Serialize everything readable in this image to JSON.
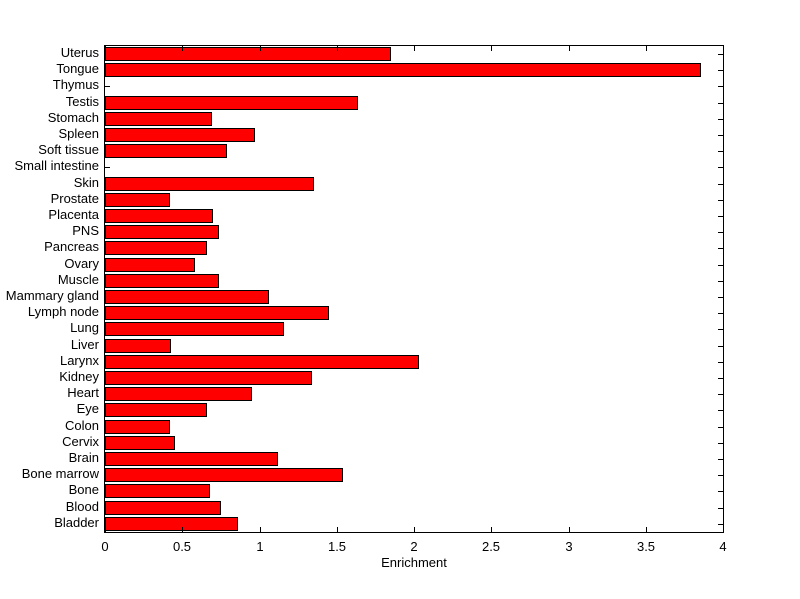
{
  "chart_data": {
    "type": "bar",
    "orientation": "horizontal",
    "title": "",
    "xlabel": "Enrichment",
    "ylabel": "",
    "xlim": [
      0,
      4
    ],
    "xticks": [
      0,
      0.5,
      1,
      1.5,
      2,
      2.5,
      3,
      3.5,
      4
    ],
    "xtick_labels": [
      "0",
      "0.5",
      "1",
      "1.5",
      "2",
      "2.5",
      "3",
      "3.5",
      "4"
    ],
    "grid": false,
    "legend": false,
    "bar_color": "#ff0000",
    "bar_edge_color": "#000000",
    "background_color": "#ffffff",
    "categories": [
      "Uterus",
      "Tongue",
      "Thymus",
      "Testis",
      "Stomach",
      "Spleen",
      "Soft tissue",
      "Small intestine",
      "Skin",
      "Prostate",
      "Placenta",
      "PNS",
      "Pancreas",
      "Ovary",
      "Muscle",
      "Mammary gland",
      "Lymph node",
      "Lung",
      "Liver",
      "Larynx",
      "Kidney",
      "Heart",
      "Eye",
      "Colon",
      "Cervix",
      "Brain",
      "Bone marrow",
      "Bone",
      "Blood",
      "Bladder"
    ],
    "values": [
      1.85,
      3.86,
      0,
      1.64,
      0.69,
      0.97,
      0.79,
      0,
      1.35,
      0.42,
      0.7,
      0.74,
      0.66,
      0.58,
      0.74,
      1.06,
      1.45,
      1.16,
      0.43,
      2.03,
      1.34,
      0.95,
      0.66,
      0.42,
      0.45,
      1.12,
      1.54,
      0.68,
      0.75,
      0.86
    ]
  }
}
